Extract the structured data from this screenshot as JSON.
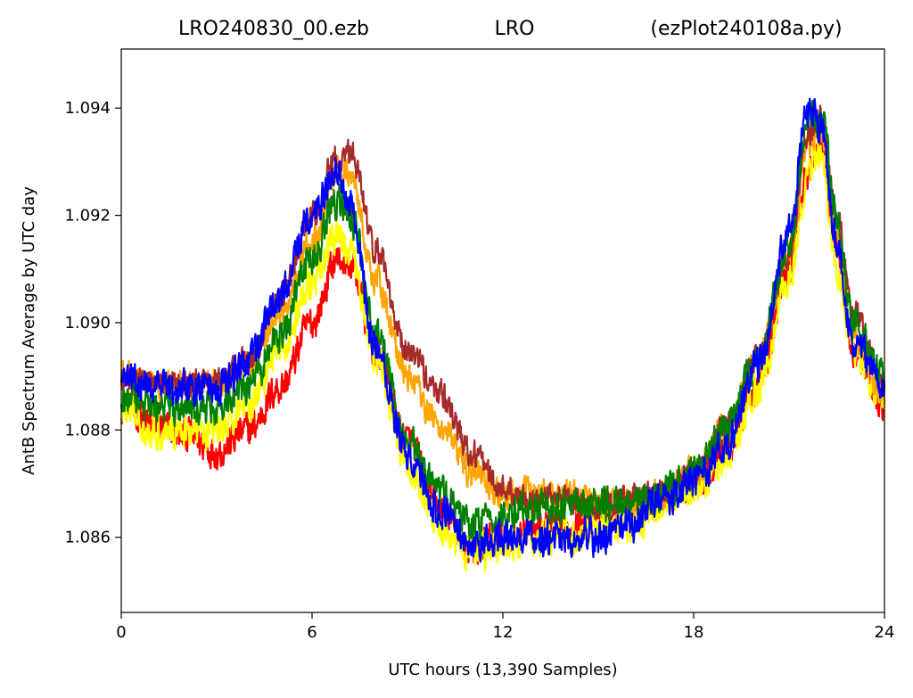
{
  "chart_data": {
    "type": "line",
    "title_left": "LRO240830_00.ezb",
    "title_center": "LRO",
    "title_right": "(ezPlot240108a.py)",
    "xlabel": "UTC hours  (13,390 Samples)",
    "ylabel": "AntB Spectrum Average by UTC day",
    "xlim": [
      0,
      24
    ],
    "ylim": [
      1.0846,
      1.0951
    ],
    "xticks": [
      0,
      6,
      12,
      18,
      24
    ],
    "xtick_labels": [
      "0",
      "6",
      "12",
      "18",
      "24"
    ],
    "yticks": [
      1.086,
      1.088,
      1.09,
      1.092,
      1.094
    ],
    "ytick_labels": [
      "1.086",
      "1.088",
      "1.090",
      "1.092",
      "1.094"
    ],
    "grid": false,
    "series": [
      {
        "color": "#ff0000",
        "noise": 0.00045,
        "x": [
          0,
          1,
          2,
          3,
          4,
          5,
          6,
          6.8,
          7.2,
          8,
          9,
          10,
          11,
          12,
          13,
          14,
          15,
          16,
          17,
          18,
          19,
          20,
          21,
          21.6,
          22,
          22.5,
          23,
          24
        ],
        "y": [
          1.0885,
          1.0881,
          1.0879,
          1.0876,
          1.088,
          1.0888,
          1.09,
          1.0912,
          1.0911,
          1.0895,
          1.0878,
          1.0865,
          1.0858,
          1.086,
          1.0862,
          1.0862,
          1.0864,
          1.0866,
          1.0868,
          1.087,
          1.0876,
          1.0888,
          1.091,
          1.0928,
          1.0933,
          1.0915,
          1.0895,
          1.0885
        ]
      },
      {
        "color": "#ffff00",
        "noise": 0.00045,
        "x": [
          0,
          1,
          2,
          3,
          4,
          5,
          6,
          6.8,
          7.2,
          8,
          9,
          10,
          11,
          12,
          13,
          14,
          15,
          16,
          17,
          18,
          19,
          20,
          21,
          21.6,
          22,
          22.5,
          23,
          24
        ],
        "y": [
          1.0884,
          1.088,
          1.088,
          1.088,
          1.0885,
          1.0895,
          1.0907,
          1.0916,
          1.0913,
          1.0893,
          1.0873,
          1.0862,
          1.0857,
          1.0858,
          1.086,
          1.086,
          1.0862,
          1.0862,
          1.0866,
          1.0869,
          1.0874,
          1.0887,
          1.0908,
          1.0928,
          1.0931,
          1.091,
          1.0895,
          1.0886
        ]
      },
      {
        "color": "#ffa500",
        "noise": 0.0004,
        "x": [
          0,
          1,
          2,
          3,
          4,
          5,
          6,
          6.8,
          7.2,
          8,
          9,
          10,
          11,
          12,
          13,
          14,
          15,
          16,
          17,
          18,
          19,
          20,
          21,
          21.6,
          22,
          22.5,
          23,
          24
        ],
        "y": [
          1.089,
          1.0888,
          1.0888,
          1.0888,
          1.0892,
          1.0902,
          1.0915,
          1.0928,
          1.0928,
          1.0908,
          1.089,
          1.0881,
          1.0872,
          1.0868,
          1.0868,
          1.0868,
          1.0866,
          1.0866,
          1.0868,
          1.0872,
          1.088,
          1.0893,
          1.0913,
          1.0933,
          1.0936,
          1.0918,
          1.0898,
          1.0887
        ]
      },
      {
        "color": "#a52a2a",
        "noise": 0.00035,
        "x": [
          0,
          1,
          2,
          3,
          4,
          5,
          6,
          6.8,
          7.2,
          8,
          9,
          10,
          11,
          12,
          13,
          14,
          15,
          16,
          17,
          18,
          19,
          20,
          21,
          21.6,
          22,
          22.5,
          23,
          24
        ],
        "y": [
          1.089,
          1.0889,
          1.0889,
          1.0889,
          1.0893,
          1.0905,
          1.092,
          1.0931,
          1.0932,
          1.0914,
          1.0895,
          1.0887,
          1.0876,
          1.0869,
          1.0867,
          1.0867,
          1.0866,
          1.0867,
          1.0869,
          1.0872,
          1.088,
          1.0893,
          1.0913,
          1.0935,
          1.0938,
          1.092,
          1.0902,
          1.0889
        ]
      },
      {
        "color": "#008000",
        "noise": 0.00045,
        "x": [
          0,
          1,
          2,
          3,
          4,
          5,
          6,
          6.8,
          7.2,
          8,
          9,
          10,
          11,
          12,
          13,
          14,
          15,
          16,
          17,
          18,
          19,
          20,
          21,
          21.6,
          22,
          22.5,
          23,
          24
        ],
        "y": [
          1.0886,
          1.0884,
          1.0884,
          1.0884,
          1.0888,
          1.0898,
          1.0912,
          1.0923,
          1.092,
          1.0898,
          1.0878,
          1.0868,
          1.0862,
          1.0864,
          1.0866,
          1.0866,
          1.0866,
          1.0866,
          1.0868,
          1.0872,
          1.088,
          1.0893,
          1.0915,
          1.0938,
          1.0938,
          1.092,
          1.09,
          1.089
        ]
      },
      {
        "color": "#0000ff",
        "noise": 0.00045,
        "x": [
          0,
          1,
          2,
          3,
          4,
          5,
          6,
          6.8,
          7.2,
          8,
          9,
          10,
          11,
          12,
          13,
          14,
          15,
          16,
          17,
          18,
          19,
          20,
          21,
          21.6,
          22,
          22.5,
          23,
          24
        ],
        "y": [
          1.089,
          1.0888,
          1.0888,
          1.0888,
          1.0893,
          1.0905,
          1.092,
          1.0929,
          1.0922,
          1.0895,
          1.0876,
          1.0865,
          1.0858,
          1.086,
          1.086,
          1.086,
          1.086,
          1.0862,
          1.0867,
          1.087,
          1.0877,
          1.0892,
          1.0917,
          1.094,
          1.0937,
          1.0915,
          1.0897,
          1.0888
        ]
      }
    ]
  }
}
